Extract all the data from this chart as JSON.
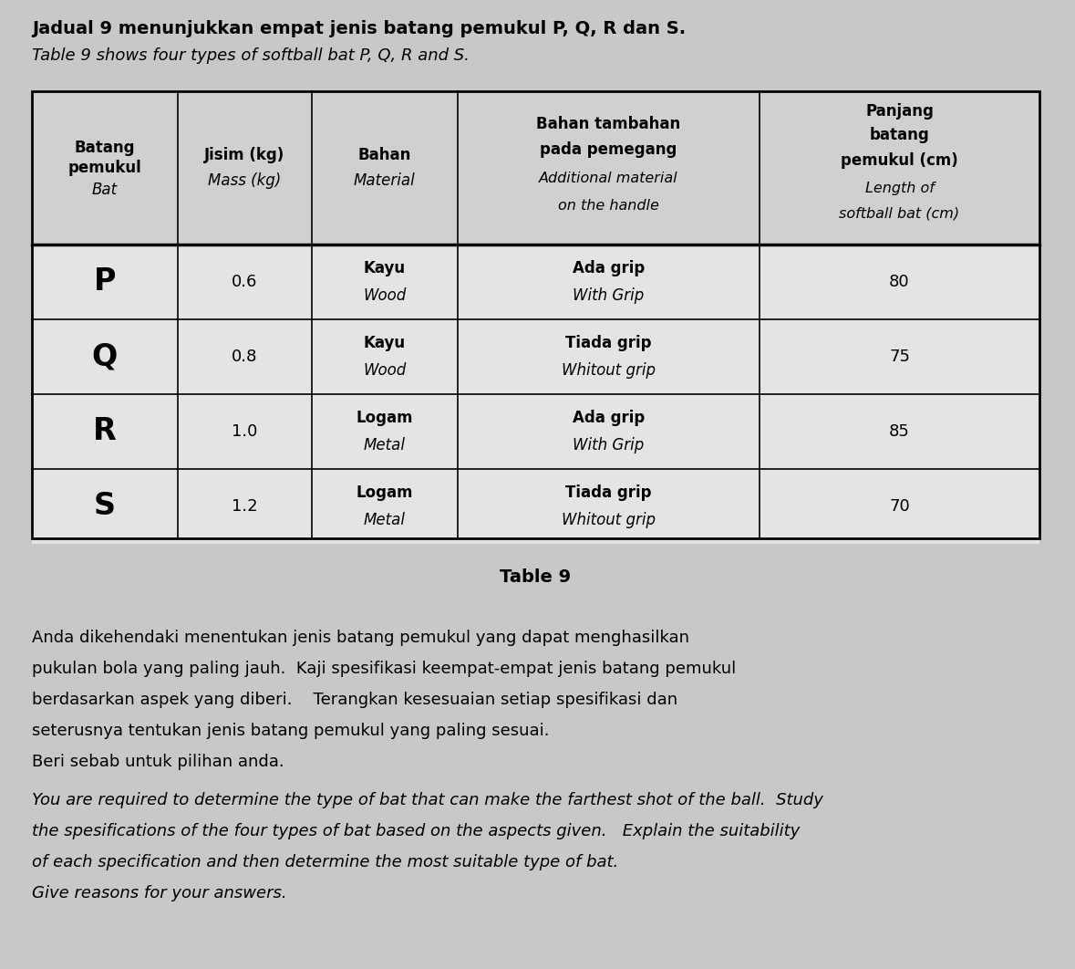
{
  "title_line1": "Jadual 9 menunjukkan empat jenis batang pemukul P, Q, R dan S.",
  "title_line2": "Table 9 shows four types of softball bat P, Q, R and S.",
  "table_caption": "Table 9",
  "col_header_text": [
    [
      "Batang",
      "pemukul",
      "Bat"
    ],
    [
      "Jisim (kg)",
      "Mass (kg)"
    ],
    [
      "Bahan",
      "Material"
    ],
    [
      "Bahan tambahan",
      "pada pemegang",
      "Additional material",
      "on the handle"
    ],
    [
      "Panjang",
      "batang",
      "pemukul (cm)",
      "Length of",
      "softball bat (cm)"
    ]
  ],
  "col_header_bold": [
    [
      true,
      true,
      false
    ],
    [
      true,
      false
    ],
    [
      true,
      false
    ],
    [
      true,
      true,
      false,
      false
    ],
    [
      true,
      true,
      true,
      false,
      false
    ]
  ],
  "rows": [
    [
      "P",
      "0.6",
      "Kayu\nWood",
      "Ada grip\nWith Grip",
      "80"
    ],
    [
      "Q",
      "0.8",
      "Kayu\nWood",
      "Tiada grip\nWhitout grip",
      "75"
    ],
    [
      "R",
      "1.0",
      "Logam\nMetal",
      "Ada grip\nWith Grip",
      "85"
    ],
    [
      "S",
      "1.2",
      "Logam\nMetal",
      "Tiada grip\nWhitout grip",
      "70"
    ]
  ],
  "para_malay_lines": [
    "Anda dikehendaki menentukan jenis batang pemukul yang dapat menghasilkan",
    "pukulan bola yang paling jauh.  Kaji spesifikasi keempat-empat jenis batang pemukul",
    "berdasarkan aspek yang diberi.    Terangkan kesesuaian setiap spesifikasi dan",
    "seterusnya tentukan jenis batang pemukul yang paling sesuai.",
    "Beri sebab untuk pilihan anda."
  ],
  "para_english_lines": [
    "You are required to determine the type of bat that can make the farthest shot of the ball.  Study",
    "the spesifications of the four types of bat based on the aspects given.   Explain the suitability",
    "of each specification and then determine the most suitable type of bat.",
    "Give reasons for your answers."
  ],
  "bg_color": "#c8c8c8",
  "header_bg": "#c8c8c8",
  "cell_bg": "#e0e0e0",
  "fig_width": 11.79,
  "fig_height": 10.62
}
